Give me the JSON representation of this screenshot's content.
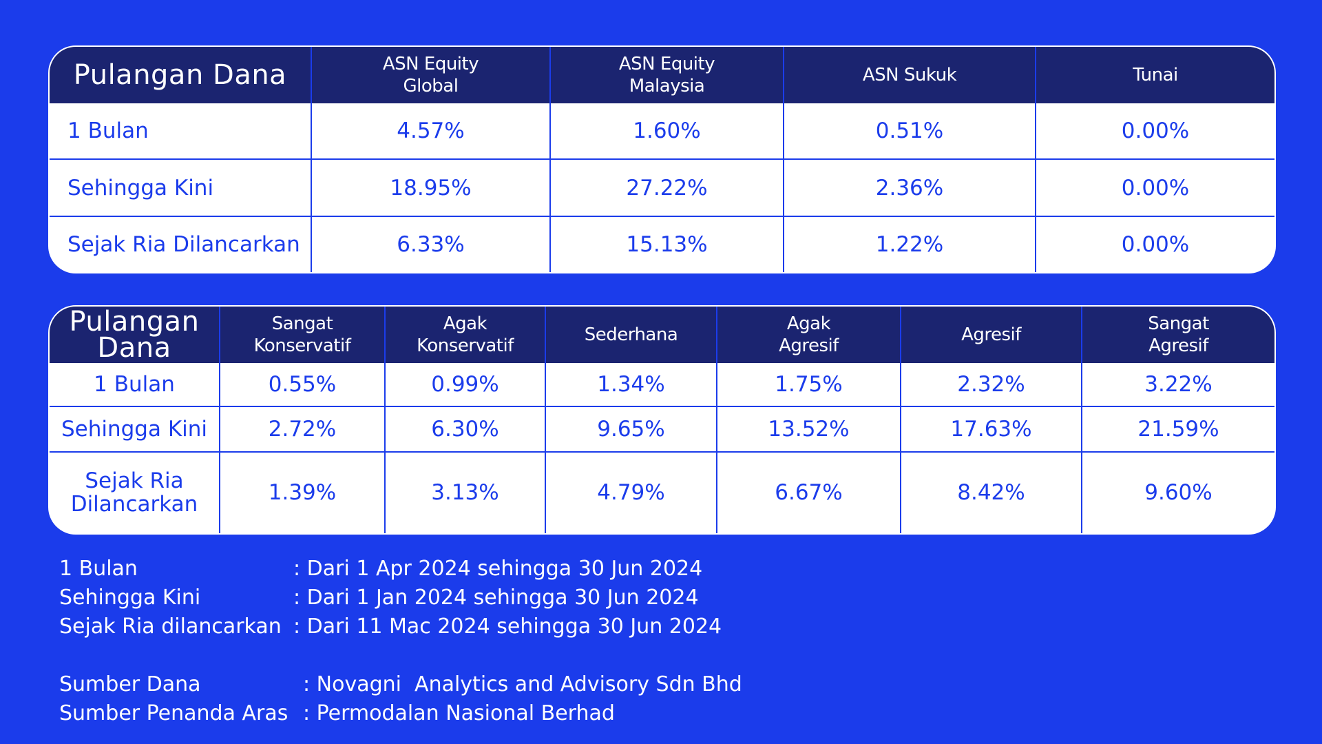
{
  "colors": {
    "background": "#1b3ceb",
    "header_bg": "#1b2470",
    "cell_bg": "#ffffff",
    "text_blue": "#1b3ceb"
  },
  "table1": {
    "corner": "Pulangan Dana",
    "columns": [
      "ASN Equity\nGlobal",
      "ASN Equity\nMalaysia",
      "ASN Sukuk",
      "Tunai"
    ],
    "rows": [
      {
        "label": "1 Bulan",
        "values": [
          "4.57%",
          "1.60%",
          "0.51%",
          "0.00%"
        ]
      },
      {
        "label": "Sehingga Kini",
        "values": [
          "18.95%",
          "27.22%",
          "2.36%",
          "0.00%"
        ]
      },
      {
        "label": "Sejak Ria Dilancarkan",
        "values": [
          "6.33%",
          "15.13%",
          "1.22%",
          "0.00%"
        ]
      }
    ]
  },
  "table2": {
    "corner": "Pulangan\nDana",
    "columns": [
      "Sangat\nKonservatif",
      "Agak\nKonservatif",
      "Sederhana",
      "Agak\nAgresif",
      "Agresif",
      "Sangat\nAgresif"
    ],
    "rows": [
      {
        "label": "1 Bulan",
        "values": [
          "0.55%",
          "0.99%",
          "1.34%",
          "1.75%",
          "2.32%",
          "3.22%"
        ]
      },
      {
        "label": "Sehingga Kini",
        "values": [
          "2.72%",
          "6.30%",
          "9.65%",
          "13.52%",
          "17.63%",
          "21.59%"
        ]
      },
      {
        "label": "Sejak Ria\nDilancarkan",
        "values": [
          "1.39%",
          "3.13%",
          "4.79%",
          "6.67%",
          "8.42%",
          "9.60%"
        ]
      }
    ]
  },
  "notes": {
    "periods": [
      {
        "label": "1 Bulan",
        "value": ": Dari 1 Apr 2024 sehingga 30 Jun 2024"
      },
      {
        "label": "Sehingga Kini",
        "value": ": Dari 1 Jan 2024 sehingga 30 Jun 2024"
      },
      {
        "label": "Sejak Ria dilancarkan",
        "value": ": Dari 11 Mac 2024 sehingga 30 Jun 2024"
      }
    ],
    "sources": [
      {
        "label": "Sumber Dana",
        "value": ": Novagni  Analytics and Advisory Sdn Bhd"
      },
      {
        "label": "Sumber Penanda Aras",
        "value": ": Permodalan Nasional Berhad"
      }
    ]
  }
}
